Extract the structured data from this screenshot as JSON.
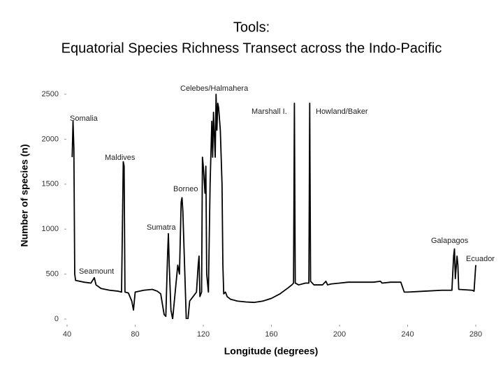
{
  "chart_data": {
    "type": "line",
    "title": "Tools:",
    "subtitle": "Equatorial Species Richness Transect across the Indo-Pacific",
    "x_label": "Longitude (degrees)",
    "y_label": "Number of species (n)",
    "xlim": [
      40,
      280
    ],
    "xticks": [
      40,
      80,
      120,
      160,
      200,
      240,
      280
    ],
    "ylim": [
      0,
      2500
    ],
    "yticks": [
      0,
      500,
      1000,
      1500,
      2000,
      2500
    ],
    "grid": false,
    "annotations": [
      "Somalia",
      "Maldives",
      "Seamount",
      "Sumatra",
      "Borneo",
      "Celebes/Halmahera",
      "Marshall I.",
      "Howland/Baker",
      "Galapagos",
      "Ecuador"
    ],
    "x": [
      43,
      43.5,
      44,
      44.5,
      45,
      50,
      54,
      56,
      57,
      60,
      65,
      70,
      72,
      73,
      73.5,
      74,
      76,
      78,
      79,
      80,
      85,
      90,
      93,
      95,
      97,
      98,
      99,
      99.5,
      100,
      101,
      102,
      104,
      105,
      106,
      107,
      107.5,
      108,
      109,
      110,
      111,
      112,
      114,
      116,
      117,
      117.5,
      118,
      119,
      119.5,
      120,
      121,
      121.5,
      122,
      123,
      124,
      125,
      125.5,
      126,
      127,
      127.5,
      128,
      128.5,
      129,
      130,
      131,
      131.5,
      132,
      133,
      134,
      136,
      140,
      145,
      150,
      155,
      160,
      165,
      170,
      172,
      173,
      173.5,
      174,
      176,
      180,
      182,
      182.5,
      183,
      185,
      190,
      192,
      193,
      195,
      200,
      205,
      210,
      220,
      224,
      225,
      230,
      236,
      238,
      240,
      250,
      260,
      266,
      267,
      267.5,
      268,
      269,
      269.5,
      270,
      278,
      279,
      280
    ],
    "series": [
      {
        "name": "Species richness",
        "color": "#000000",
        "values": [
          1800,
          2200,
          1900,
          500,
          430,
          410,
          400,
          460,
          380,
          340,
          320,
          310,
          300,
          1750,
          1700,
          300,
          290,
          200,
          100,
          300,
          320,
          330,
          310,
          280,
          50,
          30,
          700,
          950,
          600,
          100,
          0,
          400,
          600,
          500,
          1300,
          1350,
          1200,
          600,
          0,
          0,
          200,
          250,
          300,
          600,
          700,
          250,
          300,
          1800,
          1700,
          1400,
          1700,
          500,
          300,
          1500,
          2200,
          1800,
          2300,
          1800,
          2500,
          2100,
          2400,
          2350,
          2100,
          1500,
          600,
          280,
          300,
          250,
          220,
          200,
          190,
          185,
          200,
          230,
          280,
          350,
          380,
          400,
          2400,
          400,
          380,
          400,
          400,
          2400,
          420,
          380,
          380,
          420,
          380,
          390,
          400,
          410,
          410,
          410,
          420,
          400,
          410,
          410,
          300,
          300,
          310,
          320,
          320,
          700,
          780,
          450,
          700,
          600,
          330,
          320,
          310,
          600
        ]
      }
    ]
  }
}
